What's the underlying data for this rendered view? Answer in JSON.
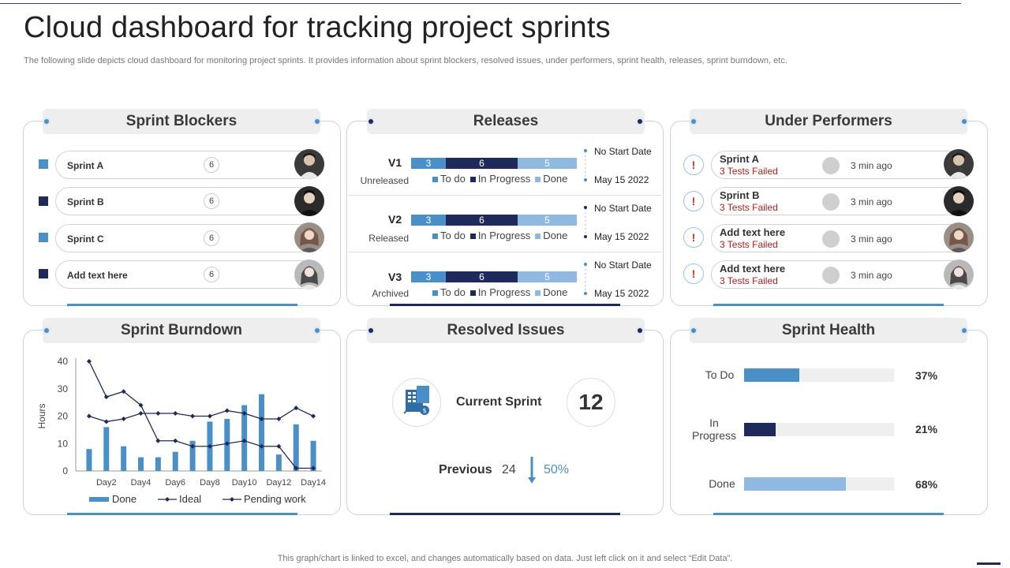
{
  "header": {
    "title": "Cloud dashboard for tracking project sprints",
    "subtitle": "The following slide depicts cloud dashboard for monitoring project sprints. It provides information about sprint blockers, resolved issues, under performers, sprint health, releases, sprint burndown, etc."
  },
  "colors": {
    "light_blue": "#4a90c8",
    "dark_navy": "#1f2a5c",
    "pale_blue": "#8fb9e0",
    "alert_red": "#b02020"
  },
  "sprint_blockers": {
    "title": "Sprint Blockers",
    "items": [
      {
        "name": "Sprint A",
        "count": "6",
        "color": "#4a90c8"
      },
      {
        "name": "Sprint B",
        "count": "6",
        "color": "#1f2a5c"
      },
      {
        "name": "Sprint C",
        "count": "6",
        "color": "#4a90c8"
      },
      {
        "name": "Add  text here",
        "count": "6",
        "color": "#1f2a5c"
      }
    ]
  },
  "releases": {
    "title": "Releases",
    "items": [
      {
        "version": "V1",
        "status": "Unreleased",
        "todo": "3",
        "in_progress": "6",
        "done": "5",
        "start": "No Start Date",
        "end": "May 15 2022"
      },
      {
        "version": "V2",
        "status": "Released",
        "todo": "3",
        "in_progress": "6",
        "done": "5",
        "start": "No Start Date",
        "end": "May 15 2022"
      },
      {
        "version": "V3",
        "status": "Archived",
        "todo": "3",
        "in_progress": "6",
        "done": "5",
        "start": "No Start Date",
        "end": "May 15 2022"
      }
    ],
    "legend": {
      "todo": "To do",
      "in_progress": "In Progress",
      "done": "Done"
    }
  },
  "under_performers": {
    "title": "Under Performers",
    "items": [
      {
        "name": "Sprint A",
        "status": "3 Tests Failed",
        "time": "3 min ago"
      },
      {
        "name": "Sprint B",
        "status": "3 Tests Failed",
        "time": "3 min ago"
      },
      {
        "name": "Add text here",
        "status": "3 Tests Failed",
        "time": "3 min ago"
      },
      {
        "name": "Add text here",
        "status": "3 Tests Failed",
        "time": "3 min ago"
      }
    ]
  },
  "sprint_burndown": {
    "title": "Sprint Burndown"
  },
  "resolved_issues": {
    "title": "Resolved Issues",
    "current_label": "Current Sprint",
    "current_value": "12",
    "previous_label": "Previous",
    "previous_value": "24",
    "change": "50%"
  },
  "sprint_health": {
    "title": "Sprint Health",
    "items": [
      {
        "label": "To Do",
        "value": 0.37,
        "pct": "37%",
        "color": "#4a90c8"
      },
      {
        "label": "In\nProgress",
        "value": 0.21,
        "pct": "21%",
        "color": "#1f2a5c"
      },
      {
        "label": "Done",
        "value": 0.68,
        "pct": "68%",
        "color": "#8fb9e0"
      }
    ]
  },
  "chart_data": {
    "type": "bar",
    "title": "",
    "xlabel": "",
    "ylabel": "Hours",
    "ylim": [
      0,
      40
    ],
    "yticks": [
      "0",
      "10",
      "20",
      "30",
      "40"
    ],
    "x": [
      1,
      2,
      3,
      4,
      5,
      6,
      7,
      8,
      9,
      10,
      11,
      12,
      13,
      14
    ],
    "xtick_labels": [
      "Day2",
      "Day4",
      "Day6",
      "Day8",
      "Day10",
      "Day12",
      "Day14"
    ],
    "series": [
      {
        "name": "Done",
        "kind": "bar",
        "color": "#4a90c8",
        "values": [
          8,
          16,
          9,
          5,
          5,
          7,
          11,
          18,
          19,
          24,
          28,
          6,
          17,
          11
        ]
      },
      {
        "name": "Ideal",
        "kind": "line",
        "color": "#1f2a5c",
        "values": [
          40,
          27,
          29,
          24,
          11,
          11,
          9,
          9,
          10,
          11,
          9,
          9,
          1,
          1
        ]
      },
      {
        "name": "Pending work",
        "kind": "line",
        "color": "#1f2a5c",
        "values": [
          20,
          18,
          19,
          21,
          21,
          21,
          20,
          20,
          22,
          21,
          19,
          19,
          23,
          20
        ]
      }
    ],
    "legend_position": "bottom"
  },
  "footer": {
    "note": "This graph/chart is linked to excel,  and changes automatically based on data. Just left click on it and select “Edit Data”."
  }
}
